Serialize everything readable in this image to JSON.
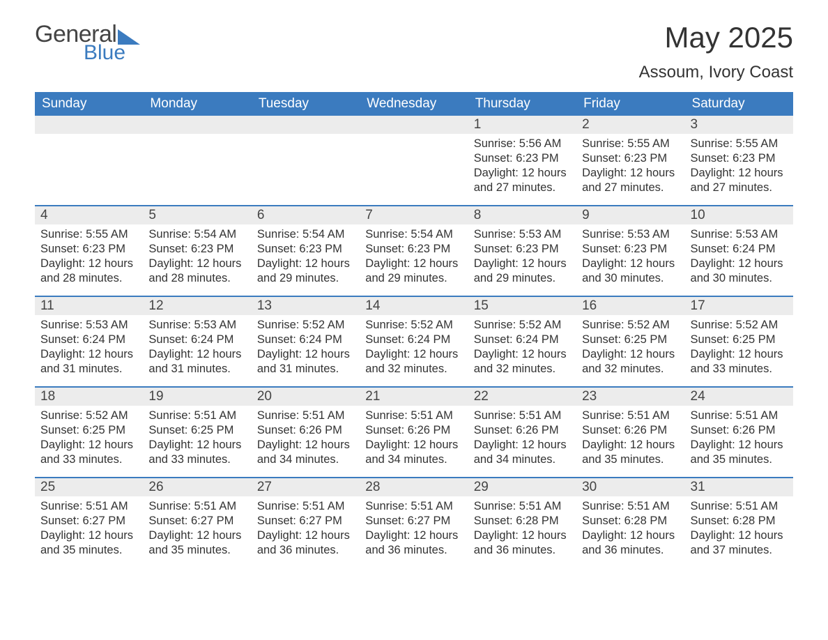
{
  "brand": {
    "word1": "General",
    "word2": "Blue"
  },
  "title": "May 2025",
  "location": "Assoum, Ivory Coast",
  "colors": {
    "header_bg": "#3b7bbf",
    "header_text": "#ffffff",
    "daynum_bg": "#ececec",
    "row_border": "#3b7bbf",
    "body_text": "#333333",
    "page_bg": "#ffffff"
  },
  "day_headers": [
    "Sunday",
    "Monday",
    "Tuesday",
    "Wednesday",
    "Thursday",
    "Friday",
    "Saturday"
  ],
  "labels": {
    "sunrise": "Sunrise:",
    "sunset": "Sunset:",
    "daylight": "Daylight:"
  },
  "weeks": [
    [
      null,
      null,
      null,
      null,
      {
        "n": "1",
        "sunrise": "5:56 AM",
        "sunset": "6:23 PM",
        "daylight": "12 hours and 27 minutes."
      },
      {
        "n": "2",
        "sunrise": "5:55 AM",
        "sunset": "6:23 PM",
        "daylight": "12 hours and 27 minutes."
      },
      {
        "n": "3",
        "sunrise": "5:55 AM",
        "sunset": "6:23 PM",
        "daylight": "12 hours and 27 minutes."
      }
    ],
    [
      {
        "n": "4",
        "sunrise": "5:55 AM",
        "sunset": "6:23 PM",
        "daylight": "12 hours and 28 minutes."
      },
      {
        "n": "5",
        "sunrise": "5:54 AM",
        "sunset": "6:23 PM",
        "daylight": "12 hours and 28 minutes."
      },
      {
        "n": "6",
        "sunrise": "5:54 AM",
        "sunset": "6:23 PM",
        "daylight": "12 hours and 29 minutes."
      },
      {
        "n": "7",
        "sunrise": "5:54 AM",
        "sunset": "6:23 PM",
        "daylight": "12 hours and 29 minutes."
      },
      {
        "n": "8",
        "sunrise": "5:53 AM",
        "sunset": "6:23 PM",
        "daylight": "12 hours and 29 minutes."
      },
      {
        "n": "9",
        "sunrise": "5:53 AM",
        "sunset": "6:23 PM",
        "daylight": "12 hours and 30 minutes."
      },
      {
        "n": "10",
        "sunrise": "5:53 AM",
        "sunset": "6:24 PM",
        "daylight": "12 hours and 30 minutes."
      }
    ],
    [
      {
        "n": "11",
        "sunrise": "5:53 AM",
        "sunset": "6:24 PM",
        "daylight": "12 hours and 31 minutes."
      },
      {
        "n": "12",
        "sunrise": "5:53 AM",
        "sunset": "6:24 PM",
        "daylight": "12 hours and 31 minutes."
      },
      {
        "n": "13",
        "sunrise": "5:52 AM",
        "sunset": "6:24 PM",
        "daylight": "12 hours and 31 minutes."
      },
      {
        "n": "14",
        "sunrise": "5:52 AM",
        "sunset": "6:24 PM",
        "daylight": "12 hours and 32 minutes."
      },
      {
        "n": "15",
        "sunrise": "5:52 AM",
        "sunset": "6:24 PM",
        "daylight": "12 hours and 32 minutes."
      },
      {
        "n": "16",
        "sunrise": "5:52 AM",
        "sunset": "6:25 PM",
        "daylight": "12 hours and 32 minutes."
      },
      {
        "n": "17",
        "sunrise": "5:52 AM",
        "sunset": "6:25 PM",
        "daylight": "12 hours and 33 minutes."
      }
    ],
    [
      {
        "n": "18",
        "sunrise": "5:52 AM",
        "sunset": "6:25 PM",
        "daylight": "12 hours and 33 minutes."
      },
      {
        "n": "19",
        "sunrise": "5:51 AM",
        "sunset": "6:25 PM",
        "daylight": "12 hours and 33 minutes."
      },
      {
        "n": "20",
        "sunrise": "5:51 AM",
        "sunset": "6:26 PM",
        "daylight": "12 hours and 34 minutes."
      },
      {
        "n": "21",
        "sunrise": "5:51 AM",
        "sunset": "6:26 PM",
        "daylight": "12 hours and 34 minutes."
      },
      {
        "n": "22",
        "sunrise": "5:51 AM",
        "sunset": "6:26 PM",
        "daylight": "12 hours and 34 minutes."
      },
      {
        "n": "23",
        "sunrise": "5:51 AM",
        "sunset": "6:26 PM",
        "daylight": "12 hours and 35 minutes."
      },
      {
        "n": "24",
        "sunrise": "5:51 AM",
        "sunset": "6:26 PM",
        "daylight": "12 hours and 35 minutes."
      }
    ],
    [
      {
        "n": "25",
        "sunrise": "5:51 AM",
        "sunset": "6:27 PM",
        "daylight": "12 hours and 35 minutes."
      },
      {
        "n": "26",
        "sunrise": "5:51 AM",
        "sunset": "6:27 PM",
        "daylight": "12 hours and 35 minutes."
      },
      {
        "n": "27",
        "sunrise": "5:51 AM",
        "sunset": "6:27 PM",
        "daylight": "12 hours and 36 minutes."
      },
      {
        "n": "28",
        "sunrise": "5:51 AM",
        "sunset": "6:27 PM",
        "daylight": "12 hours and 36 minutes."
      },
      {
        "n": "29",
        "sunrise": "5:51 AM",
        "sunset": "6:28 PM",
        "daylight": "12 hours and 36 minutes."
      },
      {
        "n": "30",
        "sunrise": "5:51 AM",
        "sunset": "6:28 PM",
        "daylight": "12 hours and 36 minutes."
      },
      {
        "n": "31",
        "sunrise": "5:51 AM",
        "sunset": "6:28 PM",
        "daylight": "12 hours and 37 minutes."
      }
    ]
  ]
}
